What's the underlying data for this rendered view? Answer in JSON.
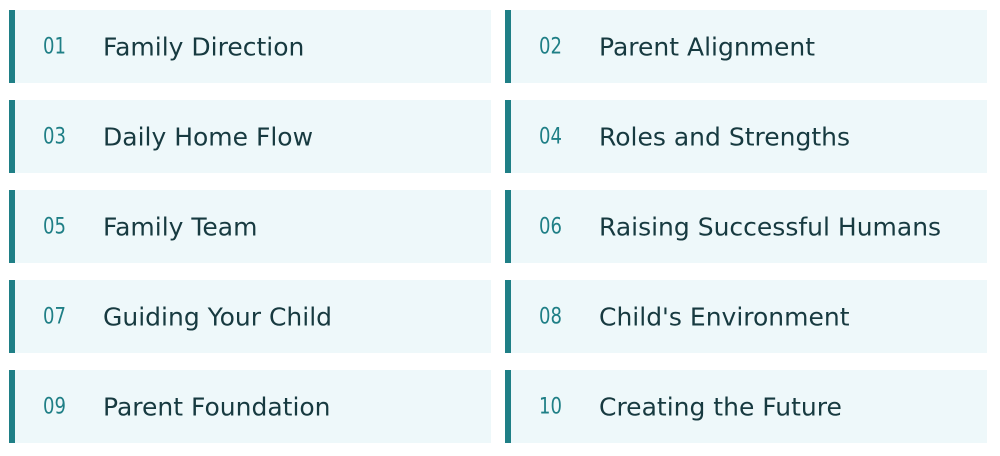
{
  "items": [
    {
      "number": "01",
      "label": "Family Direction"
    },
    {
      "number": "02",
      "label": "Parent Alignment"
    },
    {
      "number": "03",
      "label": "Daily Home Flow"
    },
    {
      "number": "04",
      "label": "Roles and Strengths"
    },
    {
      "number": "05",
      "label": "Family Team"
    },
    {
      "number": "06",
      "label": "Raising Successful Humans"
    },
    {
      "number": "07",
      "label": "Guiding Your Child"
    },
    {
      "number": "08",
      "label": "Child's Environment"
    },
    {
      "number": "09",
      "label": "Parent Foundation"
    },
    {
      "number": "10",
      "label": "Creating the Future"
    }
  ],
  "colors": {
    "accent": "#1f7f86",
    "card_background": "#eef8fa",
    "text": "#173a40"
  }
}
